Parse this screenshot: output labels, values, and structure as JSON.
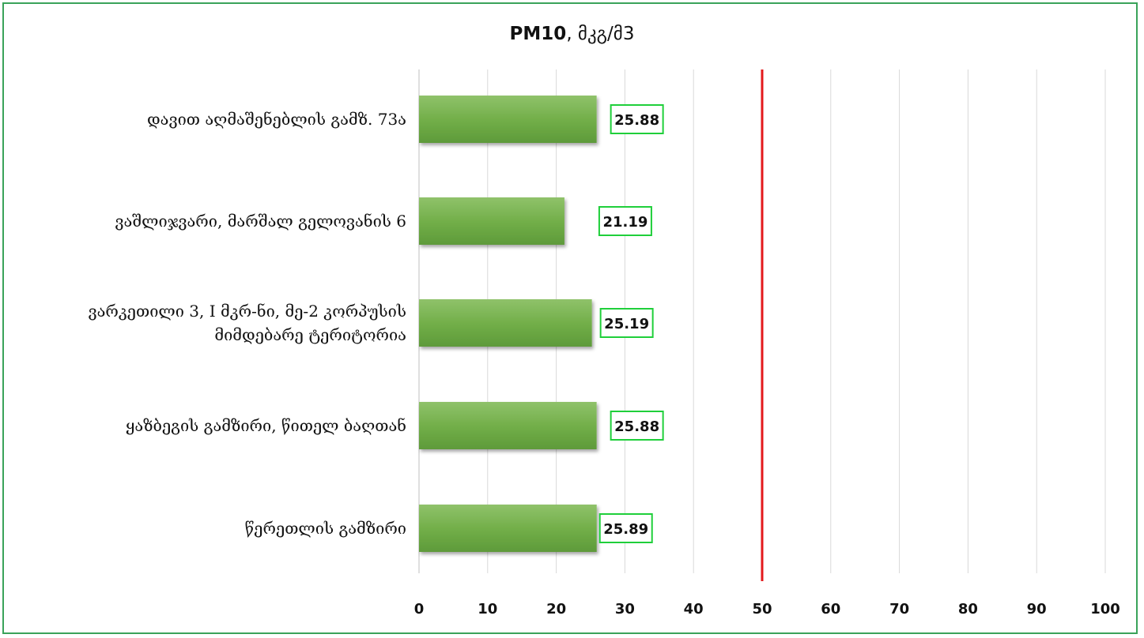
{
  "chart_data": {
    "type": "bar",
    "orientation": "horizontal",
    "title_bold": "PM10",
    "title_rest": ", მკგ/მ3",
    "categories": [
      "დავით აღმაშენებლის გამზ. 73ა",
      "ვაშლიჯვარი, მარშალ გელოვანის 6",
      "ვარკეთილი 3, I მკრ-ნი, მე-2 კორპუსის მიმდებარე ტერიტორია",
      "ყაზბეგის გამზირი, წითელ ბაღთან",
      "წერეთლის გამზირი"
    ],
    "category_lines": [
      [
        "დავით აღმაშენებლის გამზ. 73ა"
      ],
      [
        "ვაშლიჯვარი, მარშალ გელოვანის 6"
      ],
      [
        "ვარკეთილი 3, I მკრ-ნი, მე-2 კორპუსის",
        "მიმდებარე ტერიტორია"
      ],
      [
        "ყაზბეგის გამზირი, წითელ ბაღთან"
      ],
      [
        "წერეთლის გამზირი"
      ]
    ],
    "values": [
      25.88,
      21.19,
      25.19,
      25.88,
      25.89
    ],
    "value_labels": [
      "25.88",
      "21.19",
      "25.19",
      "25.88",
      "25.89"
    ],
    "xlim": [
      0,
      100
    ],
    "x_ticks": [
      "0",
      "10",
      "20",
      "30",
      "40",
      "50",
      "60",
      "70",
      "80",
      "90",
      "100"
    ],
    "reference_line": 50,
    "grid": "vertical",
    "colors": {
      "bar": "#70ad47",
      "bar_light": "#8fc26a",
      "bar_dark": "#5e9a3a",
      "reference_line": "#e31a1c",
      "label_border": "#1fcf3a",
      "frame": "#3aa35a",
      "grid": "#d9d9d9"
    }
  }
}
